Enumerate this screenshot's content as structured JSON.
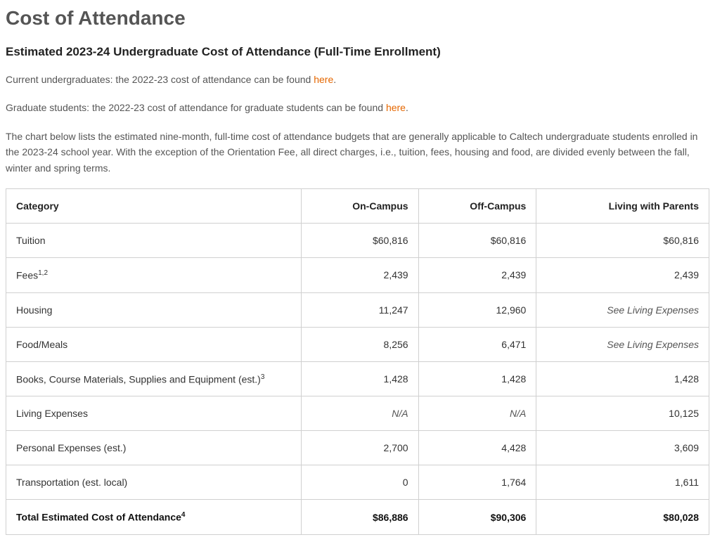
{
  "heading": "Cost of Attendance",
  "subheading": "Estimated 2023-24 Undergraduate Cost of Attendance (Full-Time Enrollment)",
  "para1_prefix": "Current undergraduates: the 2022-23 cost of attendance can be found ",
  "para1_link": "here",
  "para1_suffix": ".",
  "para2_prefix": "Graduate students: the 2022-23 cost of attendance for graduate students can be found ",
  "para2_link": "here",
  "para2_suffix": ".",
  "para3": "The chart below lists the estimated nine-month, full-time cost of attendance budgets that are generally applicable to Caltech undergraduate students enrolled in the 2023-24 school year. With the exception of the Orientation Fee, all direct charges, i.e., tuition, fees, housing and food, are divided evenly between the fall, winter and spring terms.",
  "link_color": "#e56700",
  "table": {
    "columns": [
      "Category",
      "On-Campus",
      "Off-Campus",
      "Living with Parents"
    ],
    "rows": [
      {
        "label": "Tuition",
        "sup": "",
        "cells": [
          {
            "text": "$60,816",
            "italic": false
          },
          {
            "text": "$60,816",
            "italic": false
          },
          {
            "text": "$60,816",
            "italic": false
          }
        ]
      },
      {
        "label": "Fees",
        "sup": "1,2",
        "cells": [
          {
            "text": "2,439",
            "italic": false
          },
          {
            "text": "2,439",
            "italic": false
          },
          {
            "text": "2,439",
            "italic": false
          }
        ]
      },
      {
        "label": "Housing",
        "sup": "",
        "cells": [
          {
            "text": "11,247",
            "italic": false
          },
          {
            "text": "12,960",
            "italic": false
          },
          {
            "text": "See Living Expenses",
            "italic": true
          }
        ]
      },
      {
        "label": "Food/Meals",
        "sup": "",
        "cells": [
          {
            "text": "8,256",
            "italic": false
          },
          {
            "text": "6,471",
            "italic": false
          },
          {
            "text": "See Living Expenses",
            "italic": true
          }
        ]
      },
      {
        "label": "Books, Course Materials, Supplies and Equipment (est.)",
        "sup": "3",
        "cells": [
          {
            "text": "1,428",
            "italic": false
          },
          {
            "text": "1,428",
            "italic": false
          },
          {
            "text": "1,428",
            "italic": false
          }
        ]
      },
      {
        "label": "Living Expenses",
        "sup": "",
        "cells": [
          {
            "text": "N/A",
            "italic": true
          },
          {
            "text": "N/A",
            "italic": true
          },
          {
            "text": "10,125",
            "italic": false
          }
        ]
      },
      {
        "label": "Personal Expenses (est.)",
        "sup": "",
        "cells": [
          {
            "text": "2,700",
            "italic": false
          },
          {
            "text": "4,428",
            "italic": false
          },
          {
            "text": "3,609",
            "italic": false
          }
        ]
      },
      {
        "label": "Transportation (est. local)",
        "sup": "",
        "cells": [
          {
            "text": "0",
            "italic": false
          },
          {
            "text": "1,764",
            "italic": false
          },
          {
            "text": "1,611",
            "italic": false
          }
        ]
      }
    ],
    "total": {
      "label": "Total Estimated Cost of Attendance",
      "sup": "4",
      "cells": [
        "$86,886",
        "$90,306",
        "$80,028"
      ]
    }
  }
}
